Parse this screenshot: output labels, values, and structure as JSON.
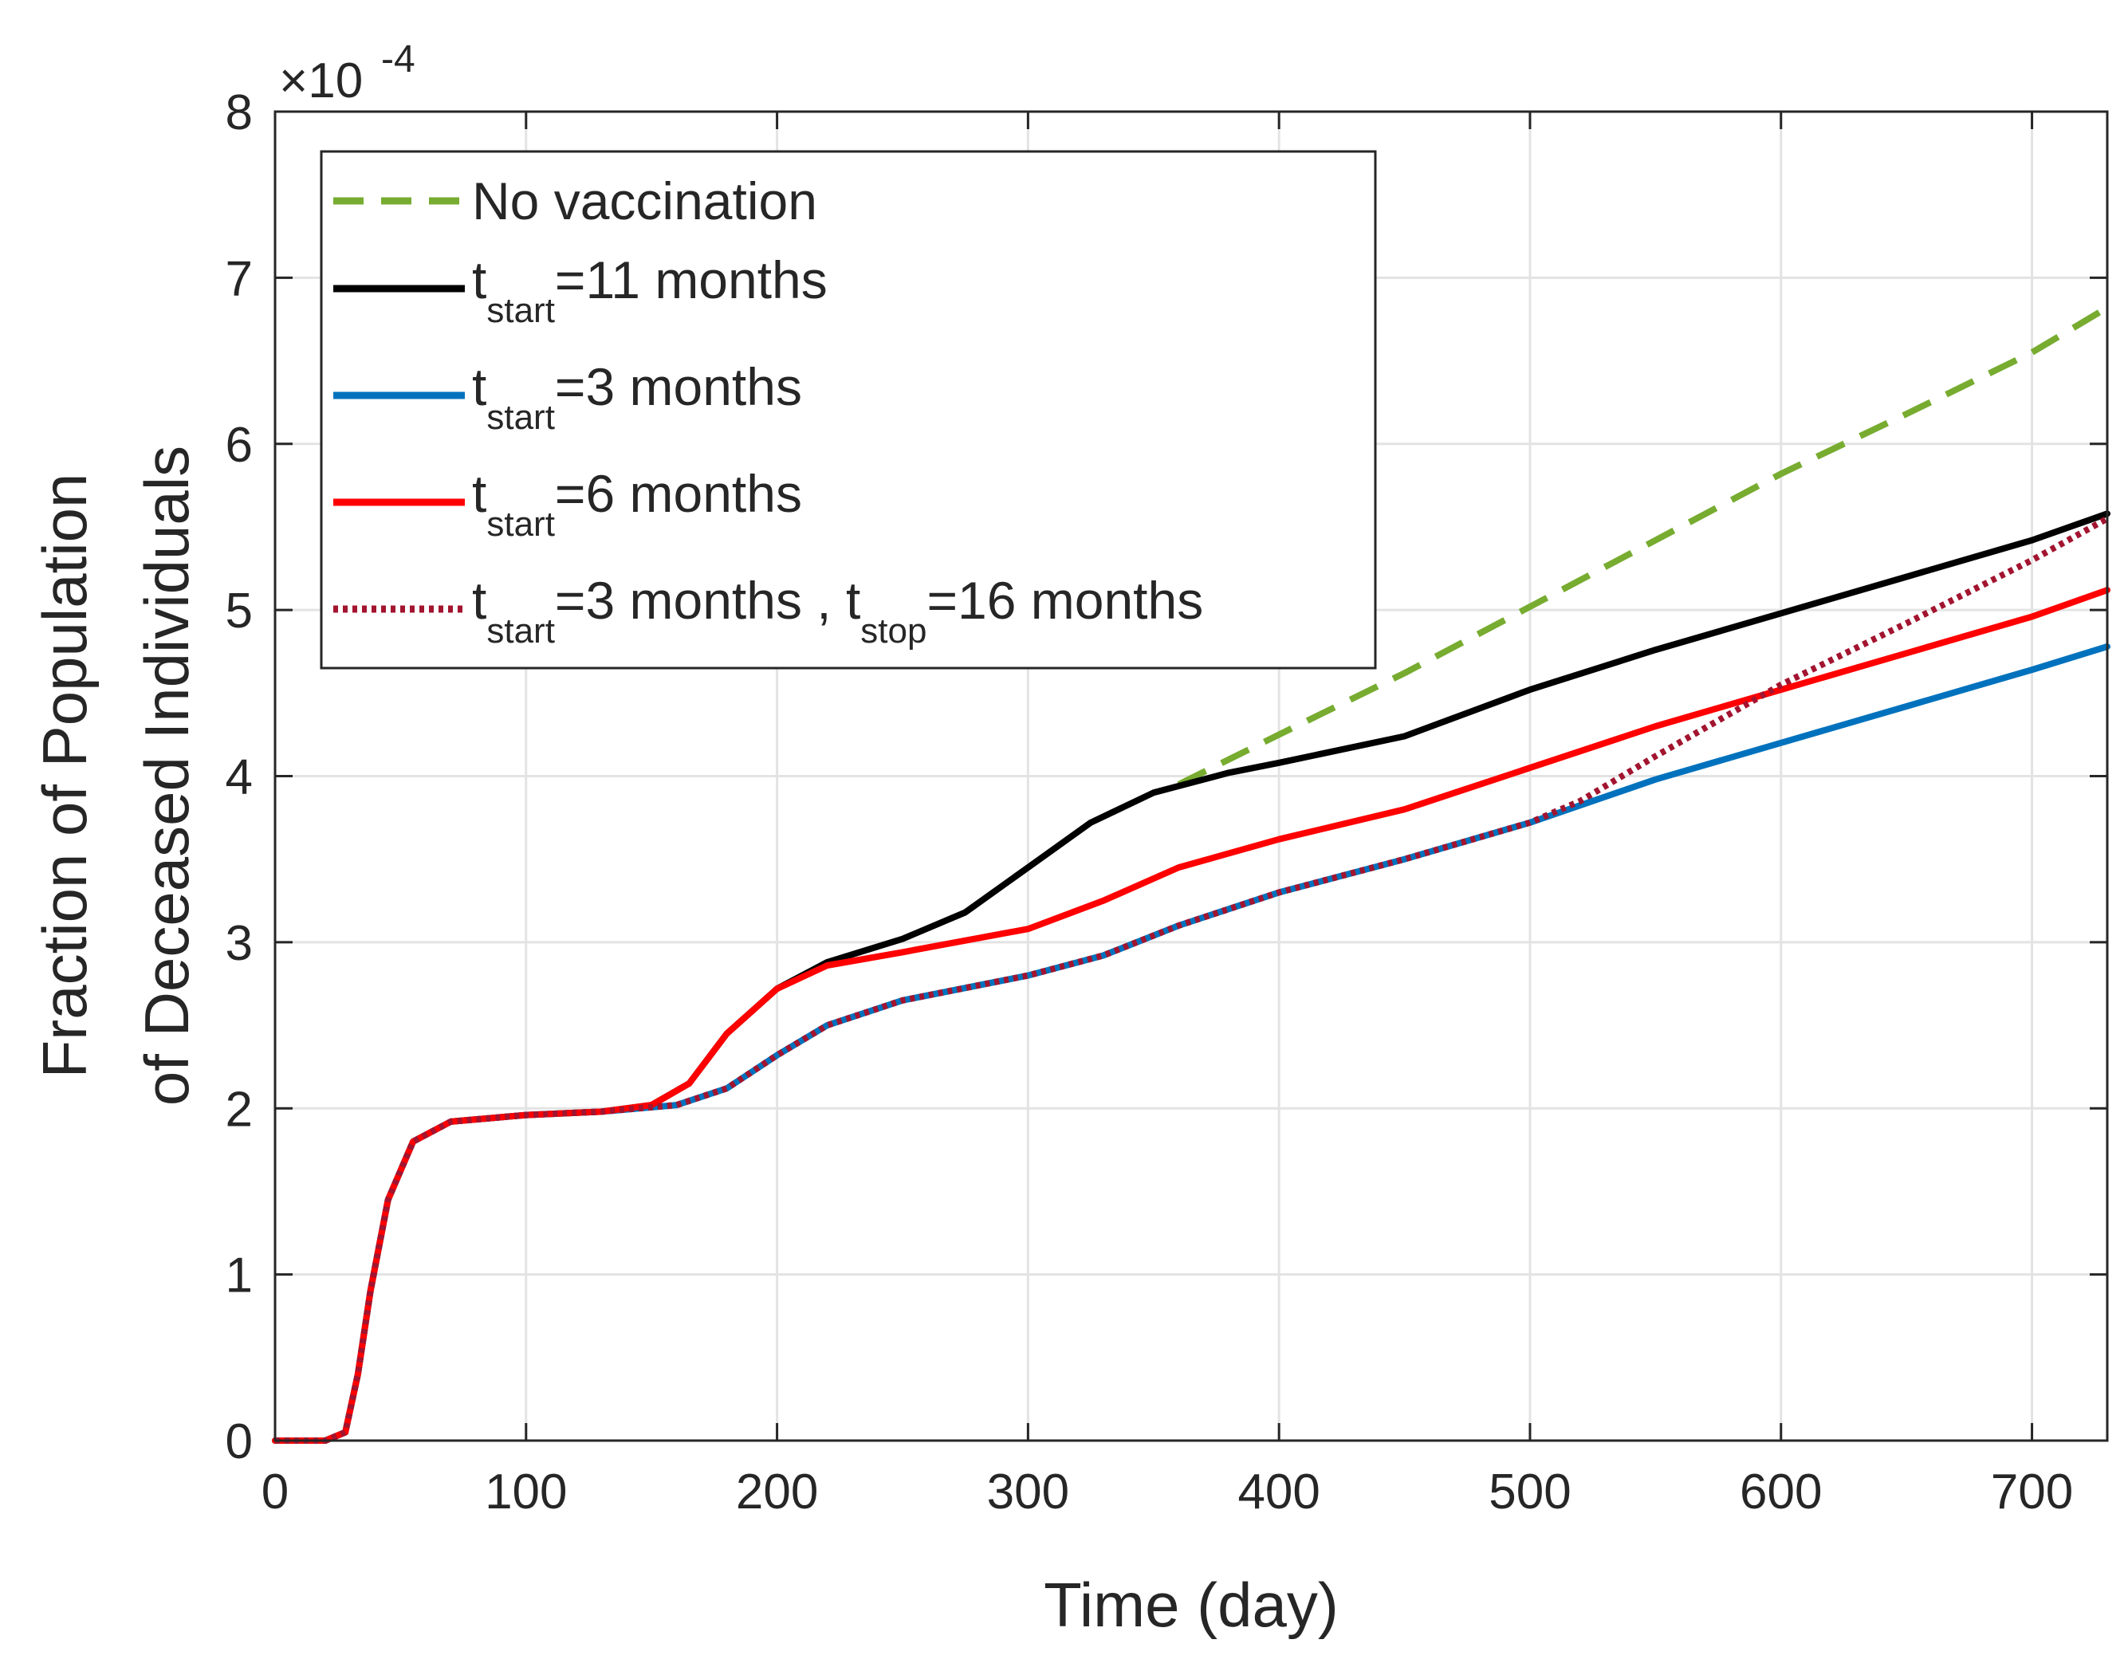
{
  "chart_data": {
    "type": "line",
    "xlabel": "Time (day)",
    "ylabel_line1": "Fraction of Population",
    "ylabel_line2": "of Deceased Individuals",
    "exponent_label": "×10",
    "exponent_power": "-4",
    "xlim": [
      0,
      730
    ],
    "ylim": [
      0,
      8
    ],
    "x_ticks": [
      0,
      100,
      200,
      300,
      400,
      500,
      600,
      700
    ],
    "y_ticks": [
      0,
      1,
      2,
      3,
      4,
      5,
      6,
      7,
      8
    ],
    "x_tick_labels": [
      "0",
      "100",
      "200",
      "300",
      "400",
      "500",
      "600",
      "700"
    ],
    "y_tick_labels": [
      "0",
      "1",
      "2",
      "3",
      "4",
      "5",
      "6",
      "7",
      "8"
    ],
    "grid": true,
    "legend_position": "top-left",
    "series": [
      {
        "name": "No vaccination",
        "legend_main": "No vaccination",
        "color": "#77AC30",
        "style": "dashed",
        "points": [
          [
            360,
            3.95
          ],
          [
            400,
            4.25
          ],
          [
            450,
            4.62
          ],
          [
            500,
            5.02
          ],
          [
            550,
            5.42
          ],
          [
            600,
            5.82
          ],
          [
            650,
            6.18
          ],
          [
            700,
            6.55
          ],
          [
            730,
            6.82
          ]
        ]
      },
      {
        "name": "t_start=11 months",
        "legend_main": "t",
        "legend_sub": "start",
        "legend_rest": "=11 months",
        "color": "#000000",
        "style": "solid",
        "points": [
          [
            0,
            0
          ],
          [
            20,
            0.0
          ],
          [
            28,
            0.05
          ],
          [
            33,
            0.4
          ],
          [
            38,
            0.9
          ],
          [
            45,
            1.45
          ],
          [
            55,
            1.8
          ],
          [
            70,
            1.92
          ],
          [
            100,
            1.96
          ],
          [
            130,
            1.98
          ],
          [
            150,
            2.02
          ],
          [
            165,
            2.15
          ],
          [
            180,
            2.45
          ],
          [
            200,
            2.72
          ],
          [
            220,
            2.88
          ],
          [
            250,
            3.02
          ],
          [
            275,
            3.18
          ],
          [
            300,
            3.45
          ],
          [
            325,
            3.72
          ],
          [
            350,
            3.9
          ],
          [
            380,
            4.02
          ],
          [
            400,
            4.08
          ],
          [
            450,
            4.24
          ],
          [
            500,
            4.52
          ],
          [
            550,
            4.76
          ],
          [
            600,
            4.98
          ],
          [
            650,
            5.2
          ],
          [
            700,
            5.42
          ],
          [
            730,
            5.58
          ]
        ]
      },
      {
        "name": "t_start=3 months",
        "legend_main": "t",
        "legend_sub": "start",
        "legend_rest": "=3 months",
        "color": "#0072BD",
        "style": "solid",
        "points": [
          [
            0,
            0
          ],
          [
            20,
            0.0
          ],
          [
            28,
            0.05
          ],
          [
            33,
            0.4
          ],
          [
            38,
            0.9
          ],
          [
            45,
            1.45
          ],
          [
            55,
            1.8
          ],
          [
            70,
            1.92
          ],
          [
            100,
            1.96
          ],
          [
            130,
            1.98
          ],
          [
            160,
            2.02
          ],
          [
            180,
            2.12
          ],
          [
            200,
            2.32
          ],
          [
            220,
            2.5
          ],
          [
            250,
            2.65
          ],
          [
            300,
            2.8
          ],
          [
            330,
            2.92
          ],
          [
            360,
            3.1
          ],
          [
            400,
            3.3
          ],
          [
            450,
            3.5
          ],
          [
            500,
            3.72
          ],
          [
            550,
            3.98
          ],
          [
            600,
            4.2
          ],
          [
            650,
            4.42
          ],
          [
            700,
            4.64
          ],
          [
            730,
            4.78
          ]
        ]
      },
      {
        "name": "t_start=6 months",
        "legend_main": "t",
        "legend_sub": "start",
        "legend_rest": "=6 months",
        "color": "#FF0000",
        "style": "solid",
        "points": [
          [
            0,
            0
          ],
          [
            20,
            0.0
          ],
          [
            28,
            0.05
          ],
          [
            33,
            0.4
          ],
          [
            38,
            0.9
          ],
          [
            45,
            1.45
          ],
          [
            55,
            1.8
          ],
          [
            70,
            1.92
          ],
          [
            100,
            1.96
          ],
          [
            130,
            1.98
          ],
          [
            150,
            2.02
          ],
          [
            165,
            2.15
          ],
          [
            180,
            2.45
          ],
          [
            200,
            2.72
          ],
          [
            220,
            2.86
          ],
          [
            250,
            2.94
          ],
          [
            300,
            3.08
          ],
          [
            330,
            3.25
          ],
          [
            360,
            3.45
          ],
          [
            400,
            3.62
          ],
          [
            450,
            3.8
          ],
          [
            500,
            4.05
          ],
          [
            550,
            4.3
          ],
          [
            600,
            4.52
          ],
          [
            650,
            4.74
          ],
          [
            700,
            4.96
          ],
          [
            730,
            5.12
          ]
        ]
      },
      {
        "name": "t_start=3 months , t_stop=16 months",
        "legend_main": "t",
        "legend_sub": "start",
        "legend_rest": "=3 months , t",
        "legend_sub2": "stop",
        "legend_rest2": "=16 months",
        "color": "#A2142F",
        "style": "dotted",
        "points": [
          [
            0,
            0
          ],
          [
            20,
            0.0
          ],
          [
            28,
            0.05
          ],
          [
            33,
            0.4
          ],
          [
            38,
            0.9
          ],
          [
            45,
            1.45
          ],
          [
            55,
            1.8
          ],
          [
            70,
            1.92
          ],
          [
            100,
            1.96
          ],
          [
            130,
            1.98
          ],
          [
            160,
            2.02
          ],
          [
            180,
            2.12
          ],
          [
            200,
            2.32
          ],
          [
            220,
            2.5
          ],
          [
            250,
            2.65
          ],
          [
            300,
            2.8
          ],
          [
            330,
            2.92
          ],
          [
            360,
            3.1
          ],
          [
            400,
            3.3
          ],
          [
            450,
            3.5
          ],
          [
            500,
            3.72
          ],
          [
            520,
            3.85
          ],
          [
            550,
            4.12
          ],
          [
            600,
            4.55
          ],
          [
            650,
            4.92
          ],
          [
            700,
            5.3
          ],
          [
            730,
            5.55
          ]
        ]
      }
    ]
  }
}
